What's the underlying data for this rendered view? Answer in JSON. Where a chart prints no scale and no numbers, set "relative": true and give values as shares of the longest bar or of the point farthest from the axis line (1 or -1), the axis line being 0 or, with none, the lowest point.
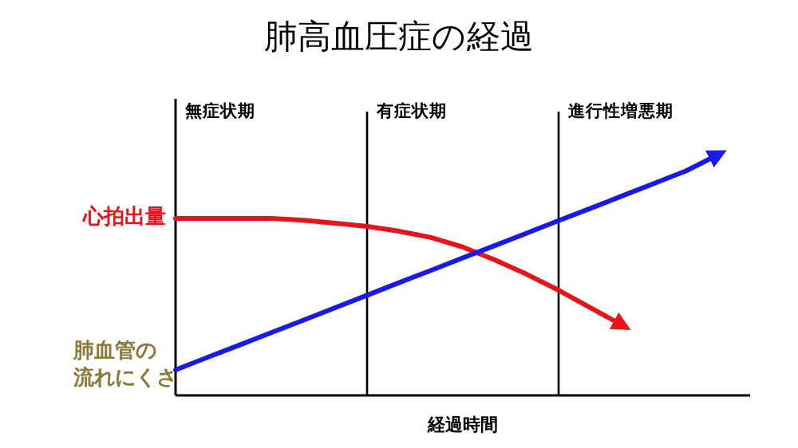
{
  "chart_data": {
    "type": "line",
    "title": "肺高血圧症の経過",
    "xlabel": "経過時間",
    "relative": true,
    "line_style": "solid",
    "categories": [
      null,
      null,
      null,
      null,
      null,
      null,
      null,
      null,
      null,
      null,
      null,
      null,
      null,
      null,
      null,
      null,
      null,
      null,
      null
    ],
    "series": [
      {
        "name": "心拍出量",
        "color": "#e8141b",
        "values": [
          0.735,
          0.735,
          0.735,
          0.735,
          0.728,
          0.715,
          0.702,
          0.682,
          0.656,
          0.616,
          0.563,
          0.503,
          0.437,
          0.364,
          0.291,
          null,
          null,
          null,
          null
        ]
      },
      {
        "name": "肺血管の流れにくさ",
        "color": "#1a1ae6",
        "values": [
          0.106,
          0.158,
          0.209,
          0.261,
          0.312,
          0.364,
          0.416,
          0.468,
          0.519,
          0.571,
          0.622,
          0.674,
          0.726,
          0.777,
          0.829,
          0.881,
          0.933,
          1.0,
          null
        ]
      }
    ],
    "annotations": [
      "無症状期",
      "有症状期",
      "進行性増悪期"
    ]
  }
}
